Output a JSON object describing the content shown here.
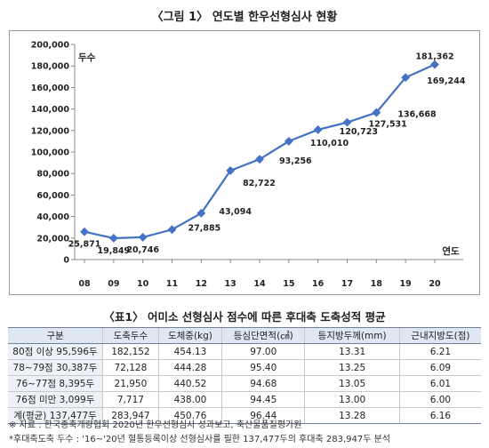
{
  "figure_title": "〈그림 1〉 연도별 한우선형심사 현황",
  "chart_data": {
    "type": "line",
    "categories": [
      "08",
      "09",
      "10",
      "11",
      "12",
      "13",
      "14",
      "15",
      "16",
      "17",
      "18",
      "19",
      "20"
    ],
    "series": [
      {
        "values": [
          25871,
          19849,
          20746,
          27885,
          43094,
          82722,
          93256,
          110010,
          120723,
          127531,
          136668,
          169244,
          181362
        ]
      }
    ],
    "data_labels": [
      "25,871",
      "19,849",
      "20,746",
      "27,885",
      "43,094",
      "82,722",
      "93,256",
      "110,010",
      "120,723",
      "127,531",
      "136,668",
      "169,244",
      "181,362"
    ],
    "ylabel": "두수",
    "xlabel": "연도",
    "ylim": [
      0,
      200000
    ],
    "yticks": [
      0,
      20000,
      40000,
      60000,
      80000,
      100000,
      120000,
      140000,
      160000,
      180000,
      200000
    ],
    "ytick_labels": [
      "0",
      "20,000",
      "40,000",
      "60,000",
      "80,000",
      "100,000",
      "120,000",
      "140,000",
      "160,000",
      "180,000",
      "200,000"
    ],
    "grid": false,
    "line_color": "#4472c4"
  },
  "table": {
    "title": "〈표1〉 어미소 선형심사 점수에 따른 후대축 도축성적 평균",
    "headers": [
      "구분",
      "도축두수",
      "도체중(kg)",
      "등심단면적(㎠)",
      "등지방두께(mm)",
      "근내지방도(점)"
    ],
    "rows": [
      [
        "80점 이상 95,596두",
        "182,152",
        "454.13",
        "97.00",
        "13.31",
        "6.21"
      ],
      [
        "78~79점 30,387두",
        "72,128",
        "444.28",
        "95.40",
        "13.25",
        "6.09"
      ],
      [
        "76~77점 8,395두",
        "21,950",
        "440.52",
        "94.68",
        "13.05",
        "6.01"
      ],
      [
        "76점 미만 3,099두",
        "7,717",
        "438.00",
        "94.45",
        "13.00",
        "6.00"
      ],
      [
        "계(평균) 137,477두",
        "283,947",
        "450.76",
        "96.44",
        "13.28",
        "6.16"
      ]
    ]
  },
  "notes": {
    "source": "※ 자료 : 한국종축개량협회 2020년 한우선형심사 성과보고, 축산물품질평가원",
    "footnote": "*후대축도축 두수 : '16~'20년 혈통등록이상 선형심사를 필한 137,477두의 후대축 283,947두 분석"
  }
}
